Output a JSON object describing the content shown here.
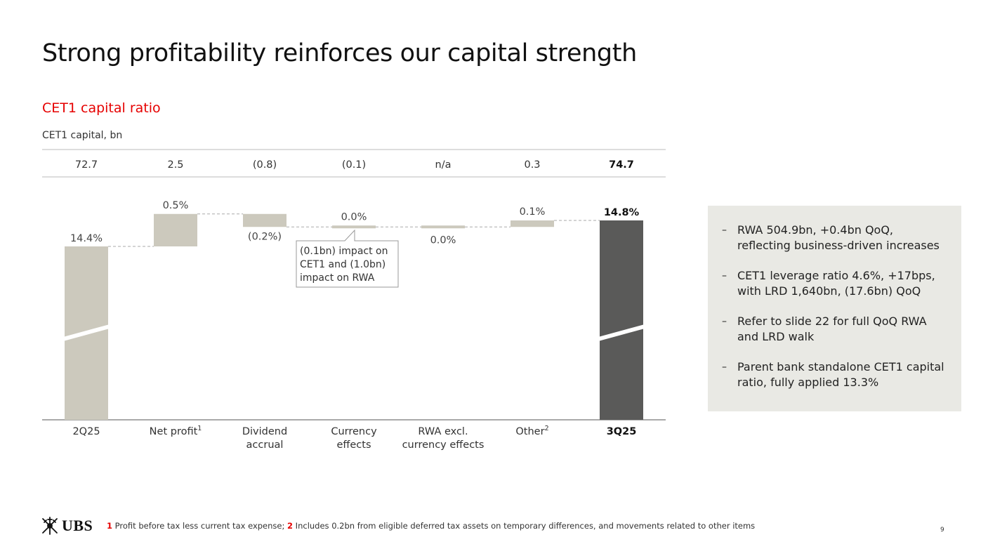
{
  "title": "Strong profitability reinforces our capital strength",
  "subtitle": "CET1 capital ratio",
  "units_label": "CET1 capital, bn",
  "colors": {
    "accent": "#e60000",
    "bar_light": "#ccc9bd",
    "bar_dark": "#5a5a59",
    "side_box": "#e9e9e4"
  },
  "chart_data": {
    "type": "waterfall",
    "title": "CET1 capital ratio",
    "categories": [
      "2Q25",
      "Net profit",
      "Dividend accrual",
      "Currency effects",
      "RWA excl. currency effects",
      "Other",
      "3Q25"
    ],
    "category_lines": [
      [
        "2Q25"
      ],
      [
        "Net profit"
      ],
      [
        "Dividend",
        "accrual"
      ],
      [
        "Currency",
        "effects"
      ],
      [
        "RWA excl.",
        "currency effects"
      ],
      [
        "Other"
      ],
      [
        "3Q25"
      ]
    ],
    "category_superscripts": [
      "",
      "1",
      "",
      "",
      "",
      "2",
      ""
    ],
    "ratio_values": [
      14.4,
      0.5,
      -0.2,
      0.0,
      0.0,
      0.1,
      14.8
    ],
    "bar_kinds": [
      "total",
      "delta",
      "delta",
      "delta",
      "delta",
      "delta",
      "total"
    ],
    "ratio_labels": [
      "14.4%",
      "0.5%",
      "(0.2%)",
      "0.0%",
      "0.0%",
      "0.1%",
      "14.8%"
    ],
    "capital_labels": [
      "72.7",
      "2.5",
      "(0.8)",
      "(0.1)",
      "n/a",
      "0.3",
      "74.7"
    ],
    "capital_unit_label": "CET1 capital, bn",
    "bold_indices": [
      6
    ],
    "axis_break": true,
    "callout": {
      "category_index": 3,
      "lines": [
        "(0.1bn) impact on",
        "CET1 and (1.0bn)",
        "impact on RWA"
      ]
    }
  },
  "side_notes": [
    [
      "RWA 504.9bn, +0.4bn QoQ,",
      "reflecting business-driven increases"
    ],
    [
      "CET1 leverage ratio 4.6%, +17bps,",
      "with LRD 1,640bn, (17.6bn) QoQ"
    ],
    [
      "Refer to slide 22 for full QoQ RWA",
      "and LRD walk"
    ],
    [
      "Parent bank standalone CET1 capital",
      "ratio, fully applied 13.3%"
    ]
  ],
  "bullet_char": "–",
  "footer": {
    "logo_text": "UBS",
    "logo_icon": "ubs-keys-icon",
    "footnotes": [
      {
        "num": "1",
        "text": " Profit before tax less current tax expense; "
      },
      {
        "num": "2",
        "text": " Includes 0.2bn from eligible deferred tax assets on temporary differences, and movements related to other items"
      }
    ],
    "page_number": "9"
  }
}
